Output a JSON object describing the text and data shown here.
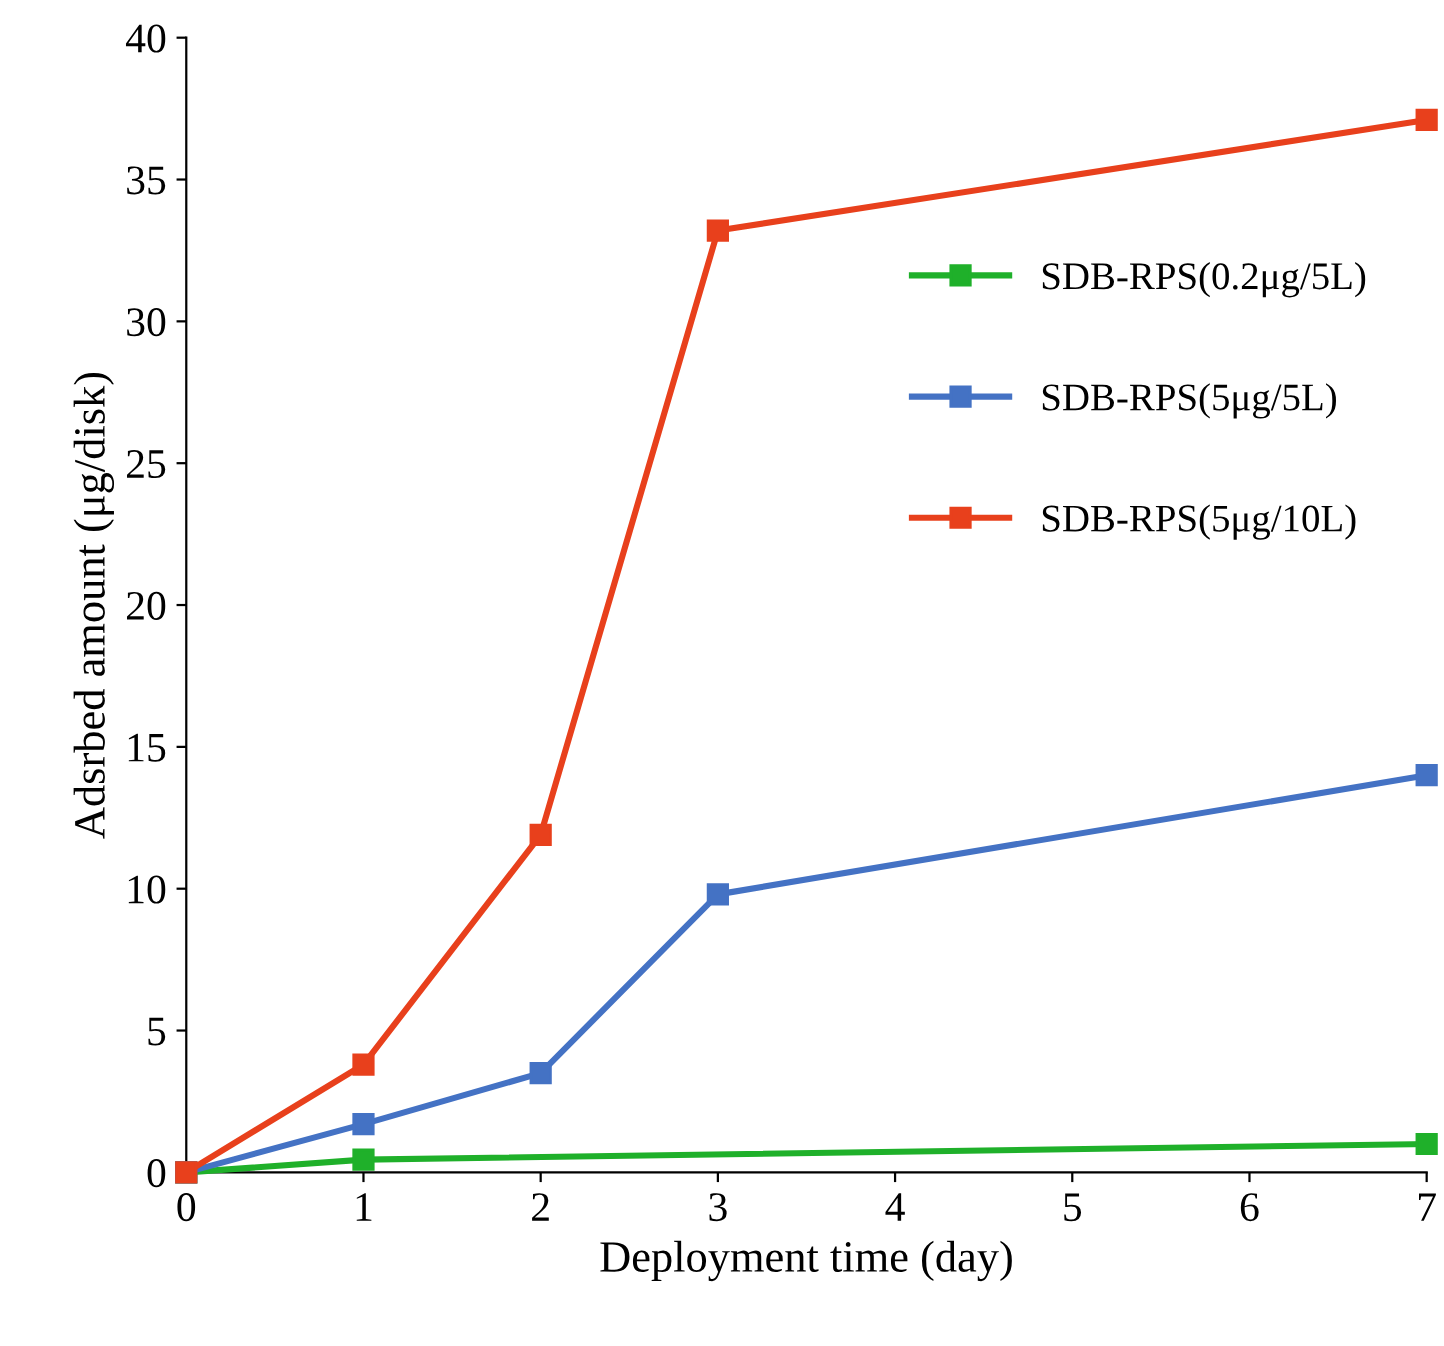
{
  "chart_data": {
    "type": "line",
    "xlabel": "Deployment time (day)",
    "ylabel": "Adsrbed amount (μg/disk)",
    "xlim": [
      0,
      7
    ],
    "xticks": [
      0,
      1,
      2,
      3,
      4,
      5,
      6,
      7
    ],
    "ylim": [
      0,
      40
    ],
    "yticks": [
      0,
      5,
      10,
      15,
      20,
      25,
      30,
      35,
      40
    ],
    "marker": "square",
    "line_style": "solid",
    "grid": false,
    "legend": "right",
    "series": [
      {
        "name": "SDB-RPS(0.2μg/5L)",
        "color": "#1fb02a",
        "x": [
          0,
          1,
          7
        ],
        "values": [
          0,
          0.45,
          1.0
        ]
      },
      {
        "name": "SDB-RPS(5μg/5L)",
        "color": "#4472c4",
        "x": [
          0,
          1,
          2,
          3,
          7
        ],
        "values": [
          0,
          1.7,
          3.5,
          9.8,
          14.0
        ]
      },
      {
        "name": "SDB-RPS(5μg/10L)",
        "color": "#e8401c",
        "x": [
          0,
          1,
          2,
          3,
          7
        ],
        "values": [
          0,
          3.8,
          11.9,
          33.2,
          37.1
        ]
      }
    ]
  }
}
